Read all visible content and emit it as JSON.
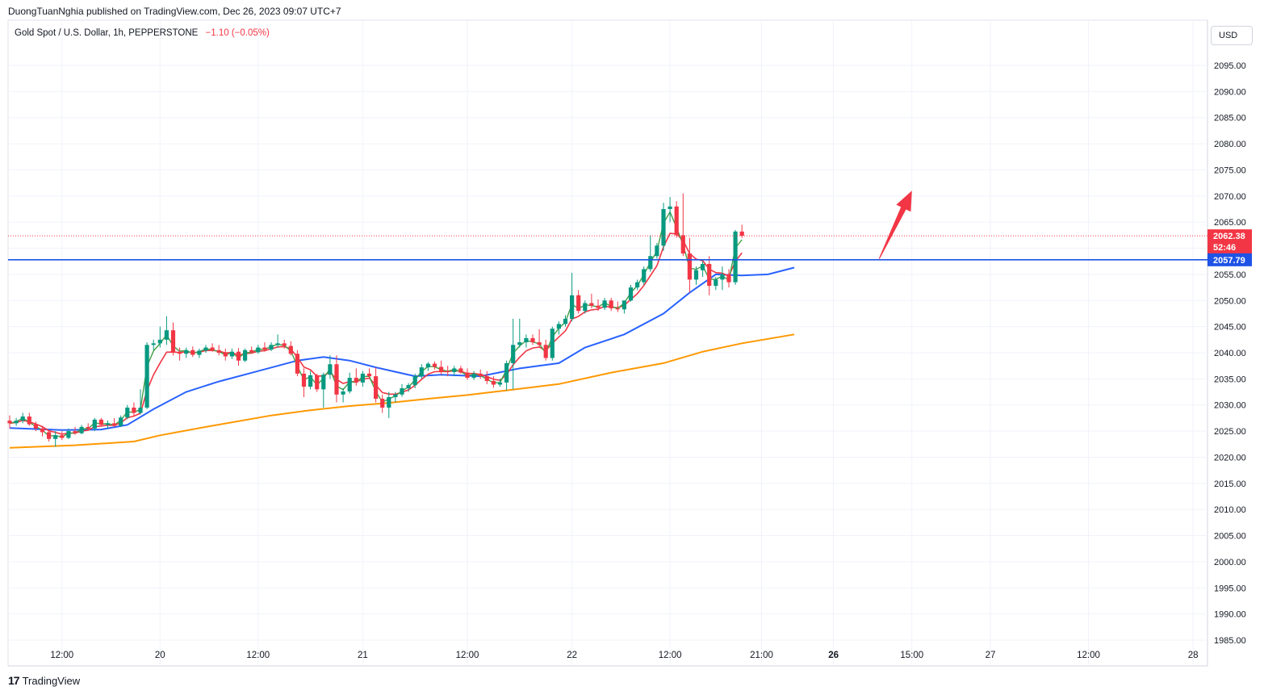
{
  "header": {
    "published_line": "DuongTuanNghia published on TradingView.com, Dec 26, 2023 09:07 UTC+7",
    "symbol": "Gold Spot / U.S. Dollar, 1h, PEPPERSTONE",
    "change": "−1.10 (−0.05%)",
    "currency": "USD"
  },
  "footer": {
    "brand": "TradingView",
    "logo_glyph": "17"
  },
  "colors": {
    "up": "#089981",
    "down": "#f23645",
    "ema_fast": "#43a047",
    "ema_mid": "#f23645",
    "ema_slow": "#2962ff",
    "ema_long": "#ff9800",
    "hline": "#1e53e5",
    "arrow": "#f23645"
  },
  "chart_data": {
    "type": "candlestick",
    "ylim": [
      1983.5,
      2100
    ],
    "y_ticks": [
      "1985.00",
      "1990.00",
      "1995.00",
      "2000.00",
      "2005.00",
      "2010.00",
      "2015.00",
      "2020.00",
      "2025.00",
      "2030.00",
      "2035.00",
      "2040.00",
      "2045.00",
      "2050.00",
      "2055.00",
      "2060.00",
      "2065.00",
      "2070.00",
      "2075.00",
      "2080.00",
      "2085.00",
      "2090.00",
      "2095.00"
    ],
    "y_tick_values": [
      1985,
      1990,
      1995,
      2000,
      2005,
      2010,
      2015,
      2020,
      2025,
      2030,
      2035,
      2040,
      2045,
      2050,
      2055,
      2060,
      2065,
      2070,
      2075,
      2080,
      2085,
      2090,
      2095
    ],
    "x_ticks": [
      {
        "label": "12:00",
        "bold": false
      },
      {
        "label": "20",
        "bold": false
      },
      {
        "label": "12:00",
        "bold": false
      },
      {
        "label": "21",
        "bold": false
      },
      {
        "label": "12:00",
        "bold": false
      },
      {
        "label": "22",
        "bold": false
      },
      {
        "label": "12:00",
        "bold": false
      },
      {
        "label": "21:00",
        "bold": false
      },
      {
        "label": "26",
        "bold": true
      },
      {
        "label": "15:00",
        "bold": false
      },
      {
        "label": "27",
        "bold": false
      },
      {
        "label": "12:00",
        "bold": false
      },
      {
        "label": "28",
        "bold": false
      }
    ],
    "x_tick_index": [
      8,
      23,
      38,
      54,
      70,
      86,
      101,
      115,
      126,
      138,
      150,
      165,
      181
    ],
    "bar_count": 195,
    "last_price": "2062.38",
    "last_price_value": 2062.38,
    "countdown": "52:46",
    "horizontal_line": "2057.79",
    "horizontal_line_value": 2057.79,
    "arrow": {
      "from": [
        133,
        2058
      ],
      "to": [
        138,
        2071
      ]
    },
    "ohlc": [
      [
        2027,
        2028,
        2025.5,
        2026.5
      ],
      [
        2026.5,
        2027.5,
        2026,
        2027
      ],
      [
        2027,
        2028.5,
        2026.5,
        2027.8
      ],
      [
        2027.8,
        2028.5,
        2026,
        2026.3
      ],
      [
        2026.3,
        2026.8,
        2025,
        2025.5
      ],
      [
        2025.5,
        2026,
        2024,
        2024.8
      ],
      [
        2024.8,
        2025.2,
        2023,
        2023.5
      ],
      [
        2023.5,
        2025,
        2022,
        2024.2
      ],
      [
        2024.2,
        2025,
        2023.3,
        2023.7
      ],
      [
        2023.7,
        2025.5,
        2023.5,
        2025
      ],
      [
        2025,
        2025.8,
        2024.3,
        2024.6
      ],
      [
        2024.6,
        2026.2,
        2024.4,
        2025.8
      ],
      [
        2025.8,
        2026.5,
        2025.2,
        2025.5
      ],
      [
        2025.5,
        2027.5,
        2025,
        2027.2
      ],
      [
        2027.2,
        2027.5,
        2026,
        2026.2
      ],
      [
        2026.2,
        2027,
        2025.5,
        2026.5
      ],
      [
        2026.5,
        2027.5,
        2025.8,
        2026
      ],
      [
        2026,
        2028,
        2025.8,
        2027.6
      ],
      [
        2027.6,
        2030,
        2027.3,
        2029.5
      ],
      [
        2029.5,
        2030.5,
        2027.8,
        2028.5
      ],
      [
        2028.5,
        2033,
        2028.2,
        2029.5
      ],
      [
        2029.5,
        2042,
        2029.2,
        2041.5
      ],
      [
        2041.5,
        2042.5,
        2040.5,
        2041.8
      ],
      [
        2041.8,
        2045,
        2041,
        2042.5
      ],
      [
        2042.5,
        2047,
        2041.5,
        2044.3
      ],
      [
        2044.3,
        2045.8,
        2039.5,
        2040.2
      ],
      [
        2040.2,
        2041,
        2038.5,
        2039.8
      ],
      [
        2039.8,
        2041,
        2039,
        2040.5
      ],
      [
        2040.5,
        2041.2,
        2039.2,
        2039.6
      ],
      [
        2039.6,
        2040.8,
        2039,
        2040.4
      ],
      [
        2040.4,
        2041.5,
        2040,
        2041
      ],
      [
        2041,
        2041.8,
        2040.2,
        2040.5
      ],
      [
        2040.5,
        2041.5,
        2039.5,
        2040
      ],
      [
        2040,
        2040.8,
        2038.5,
        2039.3
      ],
      [
        2039.3,
        2040.8,
        2038.8,
        2040.2
      ],
      [
        2040.2,
        2040.9,
        2037.5,
        2038.5
      ],
      [
        2038.5,
        2040.8,
        2038.2,
        2040.5
      ],
      [
        2040.5,
        2041.2,
        2039.8,
        2040.1
      ],
      [
        2040.1,
        2041.5,
        2039.8,
        2041
      ],
      [
        2041,
        2042,
        2040.2,
        2040.6
      ],
      [
        2040.6,
        2042,
        2040.3,
        2041.5
      ],
      [
        2041.5,
        2043.5,
        2041,
        2041.8
      ],
      [
        2041.8,
        2042.5,
        2040.8,
        2041.3
      ],
      [
        2041.3,
        2042.2,
        2039.5,
        2039.8
      ],
      [
        2039.8,
        2040.5,
        2035.5,
        2036
      ],
      [
        2036,
        2037,
        2031.5,
        2033.5
      ],
      [
        2033.5,
        2036.5,
        2033,
        2035.7
      ],
      [
        2035.7,
        2036,
        2032.5,
        2033
      ],
      [
        2033,
        2036.2,
        2029.5,
        2035.8
      ],
      [
        2035.8,
        2039.5,
        2035,
        2037.8
      ],
      [
        2037.8,
        2039.5,
        2030.5,
        2032
      ],
      [
        2032,
        2033.2,
        2030.5,
        2032.6
      ],
      [
        2032.6,
        2036.2,
        2032.2,
        2035.2
      ],
      [
        2035.2,
        2037,
        2033.7,
        2034.3
      ],
      [
        2034.3,
        2036.5,
        2033.5,
        2036
      ],
      [
        2036,
        2037,
        2035,
        2035.5
      ],
      [
        2035.5,
        2037.2,
        2030.5,
        2031.2
      ],
      [
        2031.2,
        2032,
        2028.5,
        2029.5
      ],
      [
        2029.5,
        2032.5,
        2027.5,
        2031.5
      ],
      [
        2031.5,
        2032.5,
        2030.5,
        2032
      ],
      [
        2032,
        2034,
        2031.6,
        2033.2
      ],
      [
        2033.2,
        2034.2,
        2032.5,
        2033.8
      ],
      [
        2033.8,
        2036,
        2033.2,
        2035.5
      ],
      [
        2035.5,
        2037.8,
        2035,
        2037.2
      ],
      [
        2037.2,
        2038.2,
        2036.5,
        2037.9
      ],
      [
        2037.9,
        2038.3,
        2036.8,
        2037.3
      ],
      [
        2037.3,
        2038.5,
        2035.8,
        2036.5
      ],
      [
        2036.5,
        2037.5,
        2035.5,
        2036.3
      ],
      [
        2036.3,
        2037.5,
        2035.5,
        2037
      ],
      [
        2037,
        2037.5,
        2036,
        2036.2
      ],
      [
        2036.2,
        2037,
        2034.8,
        2035.2
      ],
      [
        2035.2,
        2036.5,
        2034.8,
        2036
      ],
      [
        2036,
        2036.8,
        2035,
        2035.5
      ],
      [
        2035.5,
        2036.5,
        2034,
        2034.6
      ],
      [
        2034.6,
        2035.5,
        2033.3,
        2033.9
      ],
      [
        2033.9,
        2035,
        2033.5,
        2034.3
      ],
      [
        2034.3,
        2038.5,
        2032.8,
        2038
      ],
      [
        2038,
        2046.5,
        2033,
        2041.5
      ],
      [
        2041.5,
        2046.5,
        2041,
        2042
      ],
      [
        2042,
        2043.5,
        2041,
        2042.8
      ],
      [
        2042.8,
        2043.5,
        2041.5,
        2042
      ],
      [
        2042,
        2044.5,
        2041,
        2041.5
      ],
      [
        2041.5,
        2042.5,
        2038.5,
        2039
      ],
      [
        2039,
        2045,
        2038.5,
        2044.6
      ],
      [
        2044.6,
        2046,
        2043.5,
        2045.5
      ],
      [
        2045.5,
        2047.2,
        2045,
        2046.5
      ],
      [
        2046.5,
        2055.3,
        2046,
        2051
      ],
      [
        2051,
        2052,
        2047.5,
        2048
      ],
      [
        2048,
        2050,
        2047.5,
        2049.5
      ],
      [
        2049.5,
        2051.3,
        2048.5,
        2049
      ],
      [
        2049,
        2050.2,
        2048,
        2048.6
      ],
      [
        2048.6,
        2050.5,
        2048.2,
        2050
      ],
      [
        2050,
        2050.5,
        2048,
        2048.5
      ],
      [
        2048.5,
        2049.8,
        2047.8,
        2048.3
      ],
      [
        2048.3,
        2050,
        2047.5,
        2050
      ],
      [
        2050,
        2053,
        2049.8,
        2052.5
      ],
      [
        2052.5,
        2054,
        2052,
        2053.5
      ],
      [
        2053.5,
        2056.5,
        2053,
        2056
      ],
      [
        2056,
        2062.5,
        2055.5,
        2058.5
      ],
      [
        2058.5,
        2061,
        2058,
        2060.5
      ],
      [
        2060.5,
        2068.7,
        2059.5,
        2067.5
      ],
      [
        2067.5,
        2069.8,
        2065,
        2068
      ],
      [
        2068,
        2069,
        2062,
        2062.5
      ],
      [
        2062.5,
        2070.5,
        2058.5,
        2059
      ],
      [
        2059,
        2062,
        2051.5,
        2054
      ],
      [
        2054,
        2056.5,
        2053,
        2055.8
      ],
      [
        2055.8,
        2057.5,
        2054.5,
        2057
      ],
      [
        2057,
        2058.5,
        2051,
        2052.8
      ],
      [
        2052.8,
        2054.5,
        2052,
        2054
      ],
      [
        2054,
        2056.5,
        2052,
        2055
      ],
      [
        2055,
        2056,
        2052.5,
        2053.5
      ],
      [
        2053.5,
        2063.5,
        2053,
        2063.2
      ],
      [
        2063.2,
        2064.5,
        2062,
        2062.38
      ]
    ],
    "ohlc_x_index": [
      0,
      1,
      2,
      3,
      4,
      5,
      6,
      7,
      8,
      9,
      10,
      11,
      12,
      13,
      14,
      15,
      16,
      17,
      18,
      19,
      20,
      21,
      22,
      23,
      24,
      25,
      26,
      27,
      28,
      29,
      30,
      31,
      32,
      33,
      34,
      35,
      36,
      37,
      38,
      39,
      40,
      41,
      42,
      43,
      44,
      45,
      46,
      47,
      48,
      49,
      50,
      51,
      52,
      53,
      54,
      55,
      56,
      57,
      58,
      59,
      60,
      61,
      62,
      63,
      64,
      65,
      66,
      67,
      68,
      69,
      70,
      71,
      72,
      73,
      74,
      75,
      76,
      77,
      78,
      79,
      80,
      81,
      82,
      83,
      84,
      85,
      86,
      87,
      88,
      89,
      90,
      91,
      92,
      93,
      94,
      95,
      96,
      97,
      98,
      99,
      100,
      101,
      102,
      103,
      104,
      105,
      106,
      107,
      108,
      109,
      110,
      111,
      112,
      113,
      114
    ],
    "ema_fast": [],
    "ema_mid": [],
    "ema_slow": [],
    "ema_long_points": [
      [
        0,
        2021.8
      ],
      [
        10,
        2022.3
      ],
      [
        19,
        2023
      ],
      [
        23,
        2024.2
      ],
      [
        30,
        2025.8
      ],
      [
        40,
        2028
      ],
      [
        46,
        2029
      ],
      [
        52,
        2029.8
      ],
      [
        58,
        2030.4
      ],
      [
        64,
        2031.2
      ],
      [
        70,
        2031.9
      ],
      [
        76,
        2032.8
      ],
      [
        84,
        2034
      ],
      [
        92,
        2036.2
      ],
      [
        100,
        2038
      ],
      [
        106,
        2040.2
      ],
      [
        112,
        2041.8
      ],
      [
        120,
        2043.5
      ]
    ],
    "ema_slow_points": [
      [
        0,
        2025.6
      ],
      [
        8,
        2025.2
      ],
      [
        14,
        2025.3
      ],
      [
        18,
        2026.2
      ],
      [
        22,
        2029.2
      ],
      [
        27,
        2032.5
      ],
      [
        32,
        2034.5
      ],
      [
        38,
        2036.5
      ],
      [
        44,
        2038.5
      ],
      [
        48,
        2039.2
      ],
      [
        52,
        2038.5
      ],
      [
        56,
        2037.2
      ],
      [
        62,
        2035.5
      ],
      [
        66,
        2035.8
      ],
      [
        72,
        2035.5
      ],
      [
        78,
        2037
      ],
      [
        84,
        2038
      ],
      [
        88,
        2041
      ],
      [
        94,
        2043.5
      ],
      [
        100,
        2047.5
      ],
      [
        104,
        2051.5
      ],
      [
        108,
        2055
      ],
      [
        112,
        2054.8
      ],
      [
        116,
        2055
      ],
      [
        120,
        2056.3
      ]
    ]
  }
}
